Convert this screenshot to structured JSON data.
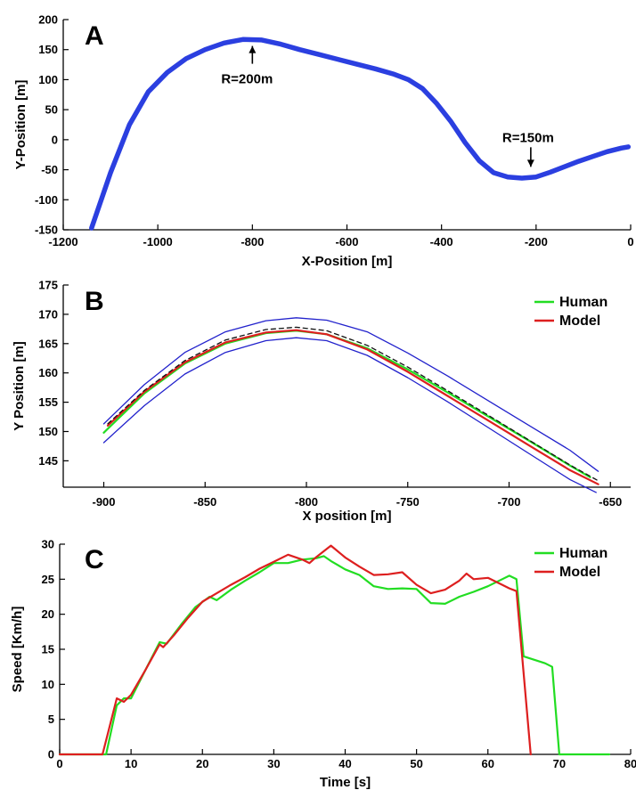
{
  "chart_data": [
    {
      "id": "A",
      "type": "line",
      "panel_label": "A",
      "title": "",
      "xlabel": "X-Position [m]",
      "ylabel": "Y-Position [m]",
      "xlim": [
        -1200,
        0
      ],
      "ylim": [
        -150,
        200
      ],
      "xticks": [
        -1200,
        -1000,
        -800,
        -600,
        -400,
        -200,
        0
      ],
      "yticks": [
        -150,
        -100,
        -50,
        0,
        50,
        100,
        150,
        200
      ],
      "grid": false,
      "series": [
        {
          "color": "#2b3fe0",
          "x": [
            -1140,
            -1100,
            -1060,
            -1020,
            -980,
            -940,
            -900,
            -860,
            -820,
            -780,
            -740,
            -700,
            -660,
            -620,
            -580,
            -540,
            -500,
            -470,
            -440,
            -410,
            -380,
            -350,
            -320,
            -290,
            -260,
            -230,
            -200,
            -170,
            -140,
            -110,
            -80,
            -50,
            -20,
            -5
          ],
          "y": [
            -147,
            -55,
            25,
            80,
            112,
            135,
            150,
            161,
            167,
            166,
            159,
            150,
            142,
            134,
            126,
            118,
            109,
            100,
            85,
            60,
            30,
            -5,
            -35,
            -55,
            -62,
            -64,
            -62,
            -54,
            -45,
            -36,
            -28,
            -20,
            -14,
            -12
          ]
        }
      ],
      "annotations": [
        {
          "text": "R=200m",
          "x": -800,
          "y": 165
        },
        {
          "text": "R=150m",
          "x": -215,
          "y": -63
        }
      ]
    },
    {
      "id": "B",
      "type": "line",
      "panel_label": "B",
      "title": "",
      "xlabel": "X position [m]",
      "ylabel": "Y Position [m]",
      "xlim": [
        -920,
        -640
      ],
      "ylim": [
        140.5,
        175
      ],
      "xticks": [
        -900,
        -850,
        -800,
        -750,
        -700,
        -650
      ],
      "yticks": [
        145,
        150,
        155,
        160,
        165,
        170,
        175
      ],
      "grid": false,
      "legend_position": "top-right",
      "legend": [
        "Human",
        "Model"
      ],
      "series": [
        {
          "name": "Human",
          "color": "#22dd22",
          "x": [
            -900,
            -880,
            -860,
            -840,
            -820,
            -805,
            -790,
            -770,
            -750,
            -730,
            -710,
            -690,
            -670,
            -660
          ],
          "y": [
            149.8,
            156.5,
            161.6,
            165.0,
            166.8,
            167.2,
            166.6,
            164.2,
            160.6,
            156.6,
            152.5,
            148.4,
            144.2,
            142.2
          ]
        },
        {
          "name": "Model",
          "color": "#dd1f1f",
          "x": [
            -898,
            -880,
            -860,
            -840,
            -820,
            -805,
            -790,
            -770,
            -750,
            -730,
            -710,
            -690,
            -670,
            -656
          ],
          "y": [
            151.0,
            156.8,
            161.8,
            165.2,
            166.9,
            167.3,
            166.6,
            164.0,
            160.2,
            156.0,
            151.8,
            147.6,
            143.4,
            141.0
          ]
        },
        {
          "color": "#111111",
          "dashed": true,
          "x": [
            -898,
            -880,
            -860,
            -840,
            -820,
            -805,
            -790,
            -770,
            -750,
            -730,
            -710,
            -690,
            -670,
            -656
          ],
          "y": [
            151.3,
            157.0,
            162.1,
            165.6,
            167.4,
            167.8,
            167.2,
            164.7,
            161.0,
            156.9,
            152.7,
            148.5,
            144.3,
            141.6
          ]
        },
        {
          "color": "#2222cc",
          "x": [
            -900,
            -880,
            -860,
            -840,
            -820,
            -805,
            -790,
            -770,
            -750,
            -730,
            -710,
            -690,
            -670,
            -656
          ],
          "y": [
            151.3,
            158.0,
            163.5,
            167.0,
            168.9,
            169.4,
            169.0,
            167.0,
            163.4,
            159.4,
            155.2,
            151.0,
            146.8,
            143.2
          ]
        },
        {
          "color": "#2222cc",
          "x": [
            -900,
            -880,
            -860,
            -840,
            -820,
            -805,
            -790,
            -770,
            -750,
            -730,
            -710,
            -690,
            -670,
            -657
          ],
          "y": [
            148.1,
            154.4,
            159.8,
            163.5,
            165.5,
            166.0,
            165.5,
            163.0,
            159.2,
            155.0,
            150.6,
            146.2,
            141.8,
            139.6
          ]
        }
      ]
    },
    {
      "id": "C",
      "type": "line",
      "panel_label": "C",
      "title": "",
      "xlabel": "Time [s]",
      "ylabel": "Speed [Km/h]",
      "xlim": [
        0,
        80
      ],
      "ylim": [
        0,
        30
      ],
      "xticks": [
        0,
        10,
        20,
        30,
        40,
        50,
        60,
        70,
        80
      ],
      "yticks": [
        0,
        5,
        10,
        15,
        20,
        25,
        30
      ],
      "grid": false,
      "legend_position": "top-right",
      "legend": [
        "Human",
        "Model"
      ],
      "series": [
        {
          "name": "Human",
          "color": "#22dd22",
          "x": [
            0,
            6.5,
            8,
            9,
            10,
            12,
            14,
            15,
            17,
            19,
            21,
            22,
            24,
            26,
            28,
            30,
            32,
            34,
            36,
            37,
            38,
            40,
            42,
            44,
            46,
            48,
            50,
            52,
            54,
            56,
            58,
            60,
            62,
            63,
            64,
            65,
            68,
            69,
            70,
            71,
            77
          ],
          "y": [
            0,
            0,
            7,
            8,
            8,
            12,
            16,
            15.8,
            18.5,
            21,
            22.5,
            22,
            23.5,
            24.8,
            26,
            27.3,
            27.3,
            27.8,
            28,
            28.3,
            27.6,
            26.4,
            25.6,
            24,
            23.6,
            23.7,
            23.6,
            21.6,
            21.5,
            22.5,
            23.2,
            24,
            25,
            25.5,
            25,
            14,
            13,
            12.5,
            0,
            0,
            0
          ]
        },
        {
          "name": "Model",
          "color": "#dd1f1f",
          "x": [
            0,
            6,
            8,
            9,
            10,
            12,
            14,
            14.5,
            16,
            18,
            20,
            22,
            24,
            26,
            28,
            30,
            32,
            34,
            35,
            36,
            38,
            40,
            42,
            44,
            46,
            48,
            50,
            52,
            54,
            56,
            57,
            58,
            60,
            62,
            63,
            64,
            66
          ],
          "y": [
            0,
            0,
            8,
            7.5,
            8.5,
            12,
            15.7,
            15.3,
            17,
            19.5,
            21.8,
            23,
            24.2,
            25.3,
            26.5,
            27.5,
            28.5,
            27.8,
            27.3,
            28.2,
            29.8,
            28.1,
            26.8,
            25.6,
            25.7,
            26,
            24.2,
            23,
            23.5,
            24.8,
            25.8,
            25,
            25.2,
            24.2,
            23.7,
            23.3,
            0
          ]
        }
      ]
    }
  ]
}
